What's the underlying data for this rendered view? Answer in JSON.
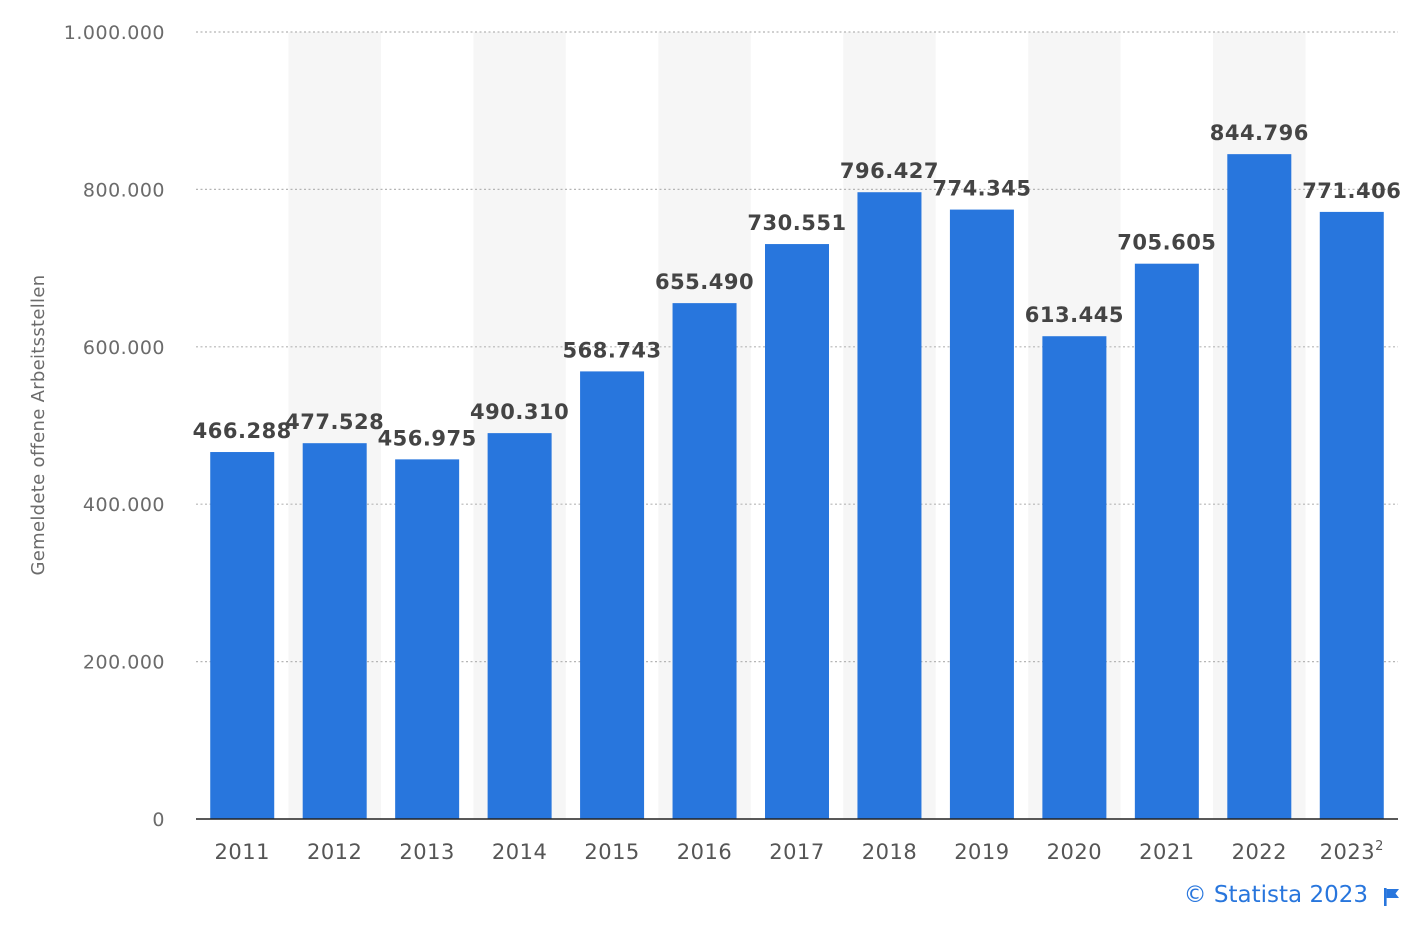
{
  "chart_data": {
    "type": "bar",
    "ylabel": "Gemeldete offene Arbeitsstellen",
    "xlabel": "",
    "categories": [
      "2011",
      "2012",
      "2013",
      "2014",
      "2015",
      "2016",
      "2017",
      "2018",
      "2019",
      "2020",
      "2021",
      "2022",
      "2023"
    ],
    "category_superscripts": [
      "",
      "",
      "",
      "",
      "",
      "",
      "",
      "",
      "",
      "",
      "",
      "",
      "2"
    ],
    "values": [
      466288,
      477528,
      456975,
      490310,
      568743,
      655490,
      730551,
      796427,
      774345,
      613445,
      705605,
      844796,
      771406
    ],
    "value_labels": [
      "466.288",
      "477.528",
      "456.975",
      "490.310",
      "568.743",
      "655.490",
      "730.551",
      "796.427",
      "774.345",
      "613.445",
      "705.605",
      "844.796",
      "771.406"
    ],
    "ylim": [
      0,
      1000000
    ],
    "yticks": [
      0,
      200000,
      400000,
      600000,
      800000,
      1000000
    ],
    "ytick_labels": [
      "0",
      "200.000",
      "400.000",
      "600.000",
      "800.000",
      "1.000.000"
    ],
    "grid": true,
    "bar_color": "#2876dd"
  },
  "footer": {
    "credit": "© Statista 2023",
    "flag_icon": "flag-icon"
  }
}
